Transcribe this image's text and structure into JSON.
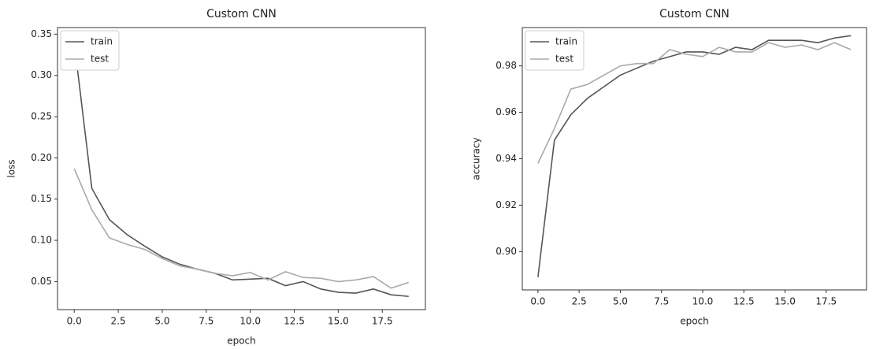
{
  "chart_data": [
    {
      "type": "line",
      "title": "Custom CNN",
      "xlabel": "epoch",
      "ylabel": "loss",
      "x": [
        0,
        1,
        2,
        3,
        4,
        5,
        6,
        7,
        8,
        9,
        10,
        11,
        12,
        13,
        14,
        15,
        16,
        17,
        18,
        19
      ],
      "series": [
        {
          "name": "train",
          "color": "#555555",
          "values": [
            0.34,
            0.163,
            0.125,
            0.107,
            0.093,
            0.08,
            0.071,
            0.065,
            0.06,
            0.052,
            0.053,
            0.054,
            0.045,
            0.05,
            0.041,
            0.037,
            0.036,
            0.041,
            0.034,
            0.032
          ]
        },
        {
          "name": "test",
          "color": "#aaaaaa",
          "values": [
            0.187,
            0.137,
            0.103,
            0.095,
            0.089,
            0.078,
            0.069,
            0.065,
            0.06,
            0.057,
            0.061,
            0.052,
            0.062,
            0.055,
            0.054,
            0.05,
            0.052,
            0.056,
            0.042,
            0.049
          ]
        }
      ],
      "xlim": [
        -0.95,
        19.95
      ],
      "xticks": [
        {
          "value": 0,
          "label": "0.0"
        },
        2.5,
        {
          "value": 5,
          "label": "5.0"
        },
        7.5,
        {
          "value": 10,
          "label": "10.0"
        },
        12.5,
        {
          "value": 15,
          "label": "15.0"
        },
        17.5
      ],
      "ylim": [
        0.016,
        0.358
      ],
      "yticks": [
        0.05,
        {
          "value": 0.1,
          "label": "0.10"
        },
        0.15,
        {
          "value": 0.2,
          "label": "0.20"
        },
        0.25,
        {
          "value": 0.3,
          "label": "0.30"
        },
        0.35
      ],
      "legend": "upper left"
    },
    {
      "type": "line",
      "title": "Custom CNN",
      "xlabel": "epoch",
      "ylabel": "accuracy",
      "x": [
        0,
        1,
        2,
        3,
        4,
        5,
        6,
        7,
        8,
        9,
        10,
        11,
        12,
        13,
        14,
        15,
        16,
        17,
        18,
        19
      ],
      "series": [
        {
          "name": "train",
          "color": "#555555",
          "values": [
            0.889,
            0.948,
            0.959,
            0.966,
            0.971,
            0.976,
            0.979,
            0.982,
            0.984,
            0.986,
            0.986,
            0.985,
            0.988,
            0.987,
            0.991,
            0.991,
            0.991,
            0.99,
            0.992,
            0.993
          ]
        },
        {
          "name": "test",
          "color": "#aaaaaa",
          "values": [
            0.938,
            0.953,
            0.97,
            0.972,
            0.976,
            0.98,
            0.981,
            0.981,
            0.987,
            0.985,
            0.984,
            0.988,
            0.986,
            0.986,
            0.99,
            0.988,
            0.989,
            0.987,
            0.99,
            0.987
          ]
        }
      ],
      "xlim": [
        -0.95,
        19.95
      ],
      "xticks": [
        {
          "value": 0,
          "label": "0.0"
        },
        2.5,
        {
          "value": 5,
          "label": "5.0"
        },
        7.5,
        {
          "value": 10,
          "label": "10.0"
        },
        12.5,
        {
          "value": 15,
          "label": "15.0"
        },
        17.5
      ],
      "ylim": [
        0.8835,
        0.9965
      ],
      "yticks": [
        {
          "value": 0.9,
          "label": "0.90"
        },
        0.92,
        0.94,
        0.96,
        0.98
      ],
      "legend": "upper left"
    }
  ]
}
